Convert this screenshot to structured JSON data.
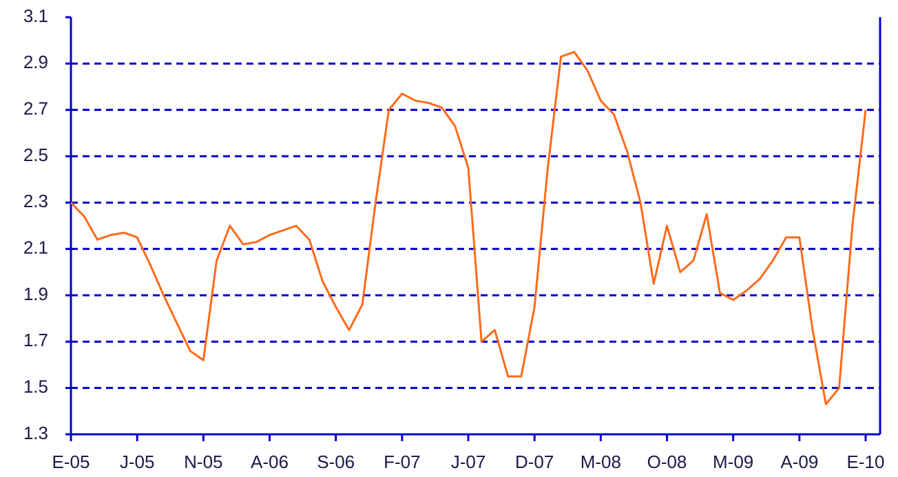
{
  "chart_data": {
    "type": "line",
    "categories": [
      "E-05",
      null,
      null,
      null,
      null,
      "J-05",
      null,
      null,
      null,
      null,
      "N-05",
      null,
      null,
      null,
      null,
      "A-06",
      null,
      null,
      null,
      null,
      "S-06",
      null,
      null,
      null,
      null,
      "F-07",
      null,
      null,
      null,
      null,
      "J-07",
      null,
      null,
      null,
      null,
      "D-07",
      null,
      null,
      null,
      null,
      "M-08",
      null,
      null,
      null,
      null,
      "O-08",
      null,
      null,
      null,
      null,
      "M-09",
      null,
      null,
      null,
      null,
      "A-09",
      null,
      null,
      null,
      null,
      "E-10"
    ],
    "series": [
      {
        "color": "#ff6a1a",
        "values": [
          2.3,
          2.24,
          2.14,
          2.16,
          2.17,
          2.15,
          2.03,
          1.9,
          1.78,
          1.66,
          1.62,
          2.05,
          2.2,
          2.12,
          2.13,
          2.16,
          2.18,
          2.2,
          2.14,
          1.96,
          1.85,
          1.75,
          1.86,
          2.3,
          2.7,
          2.77,
          2.74,
          2.73,
          2.71,
          2.63,
          2.45,
          1.7,
          1.75,
          1.55,
          1.55,
          1.85,
          2.45,
          2.93,
          2.95,
          2.87,
          2.74,
          2.68,
          2.52,
          2.3,
          1.95,
          2.2,
          2.0,
          2.05,
          2.25,
          1.91,
          1.88,
          1.92,
          1.97,
          2.05,
          2.15,
          2.15,
          1.75,
          1.43,
          1.5,
          2.2,
          2.7
        ]
      }
    ],
    "ylim": [
      1.3,
      3.1
    ],
    "yticks": [
      1.3,
      1.5,
      1.7,
      1.9,
      2.1,
      2.3,
      2.5,
      2.7,
      2.9,
      3.1
    ],
    "grid": true,
    "axis_color": "#0000cc"
  }
}
